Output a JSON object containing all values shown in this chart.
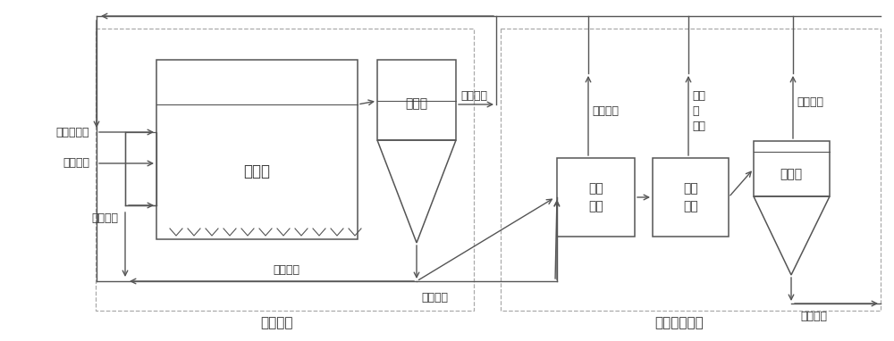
{
  "bg_color": "#ffffff",
  "lc": "#555555",
  "tc": "#333333",
  "dash_color": "#aaaaaa",
  "fig_w": 10.0,
  "fig_h": 3.82,
  "labels": {
    "powder_carbon": "粉末活性炭",
    "system_water": "系统进水",
    "compressed_air": "压缩空气",
    "aeration_tank": "曝气池",
    "secondary_tank": "二沉池",
    "treated_water": "处理出水",
    "sludge_return": "污泥回流",
    "excess_sludge": "剩余污泥",
    "sludge_thickening": "污泥\n浓缩",
    "reduction_reaction": "减量\n反应",
    "separation_tank": "分离池",
    "clear_liquid_return1": "清液回流",
    "clear_liquid_return2": "清液回流",
    "activated_carbon_reuse": "活性\n炭\n回用",
    "residue_discharge": "残泥排放",
    "biochemical_unit": "生化单元",
    "reduction_unit": "减量回收单元"
  }
}
